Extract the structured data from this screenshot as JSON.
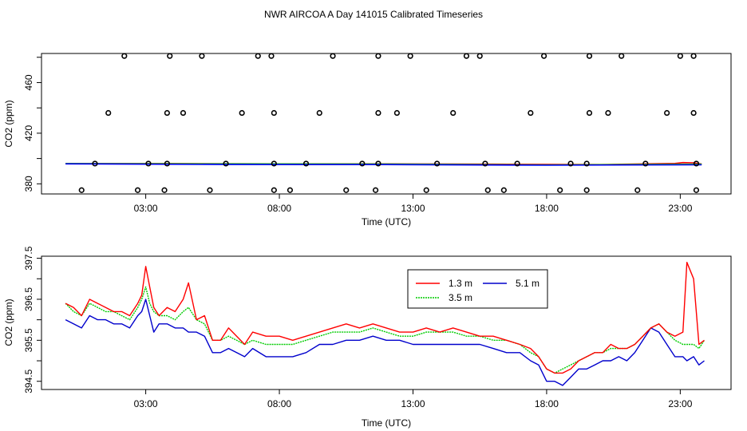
{
  "page": {
    "title": "NWR AIRCOA A  Day 141015  Calibrated Timeseries"
  },
  "chart_data": [
    {
      "id": "top",
      "type": "scatter",
      "title": "",
      "xlabel": "Time (UTC)",
      "ylabel": "CO2 (ppm)",
      "xlim": [
        -0.9,
        24.9
      ],
      "ylim": [
        372,
        483
      ],
      "grid": false,
      "xticks": [
        {
          "value": 3,
          "label": "03:00"
        },
        {
          "value": 8,
          "label": "08:00"
        },
        {
          "value": 13,
          "label": "13:00"
        },
        {
          "value": 18,
          "label": "18:00"
        },
        {
          "value": 23,
          "label": "23:00"
        }
      ],
      "yticks": [
        380,
        420,
        460
      ],
      "yticks_unlabeled": [
        400,
        440,
        480
      ],
      "flat_series": [
        {
          "name": "1.3 m",
          "color": "#ff0000",
          "x": [
            0.0,
            4.0,
            8.0,
            12.0,
            16.0,
            20.0,
            22.8,
            23.1,
            23.5,
            23.8
          ],
          "y": [
            396,
            396,
            395.8,
            395.8,
            395.5,
            395.2,
            396.1,
            396.8,
            396.6,
            395.6
          ]
        },
        {
          "name": "3.5 m",
          "color": "#00cc00",
          "x": [
            0.0,
            6.0,
            12.0,
            18.0,
            23.8
          ],
          "y": [
            396,
            395.8,
            395.6,
            394.9,
            395.5
          ]
        },
        {
          "name": "5.1 m",
          "color": "#0000ff",
          "x": [
            0.0,
            6.0,
            12.0,
            18.0,
            23.8
          ],
          "y": [
            395.8,
            395.3,
            395.2,
            394.7,
            395.1
          ]
        }
      ],
      "points": [
        {
          "x": 2.2,
          "y": 481
        },
        {
          "x": 3.9,
          "y": 481
        },
        {
          "x": 5.1,
          "y": 481
        },
        {
          "x": 7.2,
          "y": 481
        },
        {
          "x": 7.7,
          "y": 481
        },
        {
          "x": 10.0,
          "y": 481
        },
        {
          "x": 11.7,
          "y": 481
        },
        {
          "x": 12.9,
          "y": 481
        },
        {
          "x": 15.0,
          "y": 481
        },
        {
          "x": 15.5,
          "y": 481
        },
        {
          "x": 17.9,
          "y": 481
        },
        {
          "x": 19.6,
          "y": 481
        },
        {
          "x": 20.8,
          "y": 481
        },
        {
          "x": 23.0,
          "y": 481
        },
        {
          "x": 23.5,
          "y": 481
        },
        {
          "x": 1.6,
          "y": 436
        },
        {
          "x": 3.8,
          "y": 436
        },
        {
          "x": 4.4,
          "y": 436
        },
        {
          "x": 6.6,
          "y": 436
        },
        {
          "x": 7.8,
          "y": 436
        },
        {
          "x": 9.5,
          "y": 436
        },
        {
          "x": 11.7,
          "y": 436
        },
        {
          "x": 12.4,
          "y": 436
        },
        {
          "x": 14.5,
          "y": 436
        },
        {
          "x": 17.4,
          "y": 436
        },
        {
          "x": 19.6,
          "y": 436
        },
        {
          "x": 20.3,
          "y": 436
        },
        {
          "x": 22.5,
          "y": 436
        },
        {
          "x": 23.5,
          "y": 436
        },
        {
          "x": 1.1,
          "y": 396
        },
        {
          "x": 3.1,
          "y": 396
        },
        {
          "x": 3.8,
          "y": 396
        },
        {
          "x": 6.0,
          "y": 396
        },
        {
          "x": 7.8,
          "y": 396
        },
        {
          "x": 9.0,
          "y": 396
        },
        {
          "x": 11.1,
          "y": 396
        },
        {
          "x": 11.7,
          "y": 396
        },
        {
          "x": 13.9,
          "y": 396
        },
        {
          "x": 15.7,
          "y": 396
        },
        {
          "x": 16.9,
          "y": 396
        },
        {
          "x": 18.9,
          "y": 396
        },
        {
          "x": 19.5,
          "y": 396
        },
        {
          "x": 21.7,
          "y": 396
        },
        {
          "x": 23.6,
          "y": 396
        },
        {
          "x": 0.6,
          "y": 375
        },
        {
          "x": 2.7,
          "y": 375
        },
        {
          "x": 3.7,
          "y": 375
        },
        {
          "x": 5.4,
          "y": 375
        },
        {
          "x": 7.8,
          "y": 375
        },
        {
          "x": 8.4,
          "y": 375
        },
        {
          "x": 10.5,
          "y": 375
        },
        {
          "x": 11.6,
          "y": 375
        },
        {
          "x": 13.5,
          "y": 375
        },
        {
          "x": 15.8,
          "y": 375
        },
        {
          "x": 16.4,
          "y": 375
        },
        {
          "x": 18.5,
          "y": 375
        },
        {
          "x": 19.5,
          "y": 375
        },
        {
          "x": 21.4,
          "y": 375
        },
        {
          "x": 23.6,
          "y": 375
        }
      ]
    },
    {
      "id": "bottom",
      "type": "line",
      "title": "",
      "xlabel": "Time (UTC)",
      "ylabel": "CO2 (ppm)",
      "xlim": [
        -0.9,
        24.9
      ],
      "ylim": [
        394.3,
        397.55
      ],
      "grid": false,
      "legend_position": "top-center",
      "xticks": [
        {
          "value": 3,
          "label": "03:00"
        },
        {
          "value": 8,
          "label": "08:00"
        },
        {
          "value": 13,
          "label": "13:00"
        },
        {
          "value": 18,
          "label": "18:00"
        },
        {
          "value": 23,
          "label": "23:00"
        }
      ],
      "yticks": [
        {
          "value": 394.5,
          "label": "394.5"
        },
        {
          "value": 395.0,
          "label": ""
        },
        {
          "value": 395.5,
          "label": "395.5"
        },
        {
          "value": 396.0,
          "label": ""
        },
        {
          "value": 396.5,
          "label": "396.5"
        },
        {
          "value": 397.0,
          "label": ""
        },
        {
          "value": 397.5,
          "label": "397.5"
        }
      ],
      "series": [
        {
          "name": "1.3 m",
          "color": "#ff0000",
          "x": [
            0.0,
            0.3,
            0.6,
            0.9,
            1.2,
            1.5,
            1.8,
            2.1,
            2.4,
            2.7,
            2.85,
            3.0,
            3.15,
            3.3,
            3.5,
            3.8,
            4.1,
            4.4,
            4.6,
            4.9,
            5.2,
            5.5,
            5.8,
            6.1,
            6.4,
            6.7,
            7.0,
            7.5,
            8.0,
            8.5,
            9.0,
            9.5,
            10.0,
            10.5,
            11.0,
            11.5,
            12.0,
            12.5,
            13.0,
            13.5,
            14.0,
            14.5,
            15.0,
            15.5,
            16.0,
            16.5,
            17.0,
            17.4,
            17.7,
            18.0,
            18.3,
            18.6,
            18.9,
            19.2,
            19.5,
            19.8,
            20.1,
            20.4,
            20.7,
            21.0,
            21.3,
            21.6,
            21.9,
            22.2,
            22.5,
            22.8,
            23.1,
            23.25,
            23.5,
            23.7,
            23.9
          ],
          "y": [
            396.4,
            396.3,
            396.1,
            396.5,
            396.4,
            396.3,
            396.2,
            396.2,
            396.1,
            396.4,
            396.6,
            397.3,
            396.8,
            396.3,
            396.1,
            396.3,
            396.2,
            396.5,
            396.9,
            396.0,
            396.1,
            395.5,
            395.5,
            395.8,
            395.6,
            395.4,
            395.7,
            395.6,
            395.6,
            395.5,
            395.6,
            395.7,
            395.8,
            395.9,
            395.8,
            395.9,
            395.8,
            395.7,
            395.7,
            395.8,
            395.7,
            395.8,
            395.7,
            395.6,
            395.6,
            395.5,
            395.4,
            395.3,
            395.1,
            394.8,
            394.7,
            394.7,
            394.8,
            395.0,
            395.1,
            395.2,
            395.2,
            395.4,
            395.3,
            395.3,
            395.4,
            395.6,
            395.8,
            395.9,
            395.7,
            395.6,
            395.7,
            397.4,
            397.0,
            395.4,
            395.5
          ]
        },
        {
          "name": "3.5 m",
          "color": "#00cc00",
          "x": [
            0.0,
            0.3,
            0.6,
            0.9,
            1.2,
            1.5,
            1.8,
            2.1,
            2.4,
            2.7,
            2.85,
            3.0,
            3.15,
            3.3,
            3.5,
            3.8,
            4.1,
            4.4,
            4.6,
            4.9,
            5.2,
            5.5,
            5.8,
            6.1,
            6.4,
            6.7,
            7.0,
            7.5,
            8.0,
            8.5,
            9.0,
            9.5,
            10.0,
            10.5,
            11.0,
            11.5,
            12.0,
            12.5,
            13.0,
            13.5,
            14.0,
            14.5,
            15.0,
            15.5,
            16.0,
            16.5,
            17.0,
            17.4,
            17.7,
            18.0,
            18.3,
            18.6,
            18.9,
            19.2,
            19.5,
            19.8,
            20.1,
            20.4,
            20.7,
            21.0,
            21.3,
            21.6,
            21.9,
            22.2,
            22.5,
            22.8,
            23.1,
            23.25,
            23.5,
            23.7,
            23.9
          ],
          "y": [
            396.4,
            396.2,
            396.1,
            396.4,
            396.3,
            396.2,
            396.2,
            396.1,
            396.0,
            396.3,
            396.5,
            396.8,
            396.4,
            396.2,
            396.1,
            396.1,
            396.0,
            396.2,
            396.3,
            396.0,
            395.9,
            395.5,
            395.5,
            395.6,
            395.5,
            395.4,
            395.5,
            395.4,
            395.4,
            395.4,
            395.5,
            395.6,
            395.7,
            395.7,
            395.7,
            395.8,
            395.7,
            395.6,
            395.6,
            395.7,
            395.7,
            395.7,
            395.6,
            395.6,
            395.5,
            395.5,
            395.4,
            395.2,
            395.1,
            394.8,
            394.7,
            394.8,
            394.9,
            395.0,
            395.1,
            395.2,
            395.2,
            395.3,
            395.3,
            395.3,
            395.4,
            395.6,
            395.8,
            395.9,
            395.7,
            395.5,
            395.4,
            395.4,
            395.4,
            395.3,
            395.5
          ]
        },
        {
          "name": "5.1 m",
          "color": "#0000cc",
          "x": [
            0.0,
            0.3,
            0.6,
            0.9,
            1.2,
            1.5,
            1.8,
            2.1,
            2.4,
            2.7,
            2.85,
            3.0,
            3.15,
            3.3,
            3.5,
            3.8,
            4.1,
            4.4,
            4.6,
            4.9,
            5.2,
            5.5,
            5.8,
            6.1,
            6.4,
            6.7,
            7.0,
            7.5,
            8.0,
            8.5,
            9.0,
            9.5,
            10.0,
            10.5,
            11.0,
            11.5,
            12.0,
            12.5,
            13.0,
            13.5,
            14.0,
            14.5,
            15.0,
            15.5,
            16.0,
            16.5,
            17.0,
            17.4,
            17.7,
            18.0,
            18.3,
            18.6,
            18.9,
            19.2,
            19.5,
            19.8,
            20.1,
            20.4,
            20.7,
            21.0,
            21.3,
            21.6,
            21.9,
            22.2,
            22.5,
            22.8,
            23.1,
            23.25,
            23.5,
            23.7,
            23.9
          ],
          "y": [
            396.0,
            395.9,
            395.8,
            396.1,
            396.0,
            396.0,
            395.9,
            395.9,
            395.8,
            396.1,
            396.2,
            396.5,
            396.1,
            395.7,
            395.9,
            395.9,
            395.8,
            395.8,
            395.7,
            395.7,
            395.6,
            395.2,
            395.2,
            395.3,
            395.2,
            395.1,
            395.3,
            395.1,
            395.1,
            395.1,
            395.2,
            395.4,
            395.4,
            395.5,
            395.5,
            395.6,
            395.5,
            395.5,
            395.4,
            395.4,
            395.4,
            395.4,
            395.4,
            395.4,
            395.3,
            395.2,
            395.2,
            395.0,
            394.9,
            394.5,
            394.5,
            394.4,
            394.6,
            394.8,
            394.8,
            394.9,
            395.0,
            395.0,
            395.1,
            395.0,
            395.2,
            395.5,
            395.8,
            395.7,
            395.4,
            395.1,
            395.1,
            395.0,
            395.1,
            394.9,
            395.0
          ]
        }
      ]
    }
  ]
}
